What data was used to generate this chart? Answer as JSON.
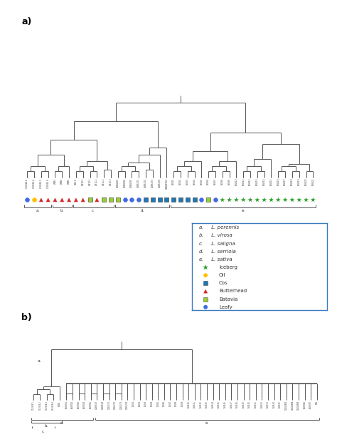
{
  "title_a": "a)",
  "title_b": "b)",
  "background_color": "#ffffff",
  "legend_entries": [
    {
      "label": "a. L. perennis",
      "color": "#000000",
      "marker": null,
      "italic": true
    },
    {
      "label": "b. L. virosa",
      "color": "#000000",
      "marker": null,
      "italic": true
    },
    {
      "label": "c. L. saligna",
      "color": "#000000",
      "marker": null,
      "italic": true
    },
    {
      "label": "d. L. serriola",
      "color": "#000000",
      "marker": null,
      "italic": true
    },
    {
      "label": "e. L. sativa",
      "color": "#000000",
      "marker": null,
      "italic": true
    },
    {
      "label": "Iceberg",
      "color": "#2ca02c",
      "marker": "*",
      "italic": false
    },
    {
      "label": "Oil",
      "color": "#ffbf00",
      "marker": "o",
      "italic": false
    },
    {
      "label": "Cos",
      "color": "#1f77b4",
      "marker": "s",
      "italic": false
    },
    {
      "label": "Butterhead",
      "color": "#d62728",
      "marker": "^",
      "italic": false
    },
    {
      "label": "Batavia",
      "color": "#9acd32",
      "marker": "s",
      "italic": false
    },
    {
      "label": "Leafy",
      "color": "#4169e1",
      "marker": "o",
      "italic": false
    }
  ],
  "marker_colors_a": [
    "#4169e1",
    "#ffbf00",
    "#d62728",
    "#d62728",
    "#d62728",
    "#d62728",
    "#d62728",
    "#d62728",
    "#d62728",
    "#9acd32",
    "#d62728",
    "#9acd32",
    "#9acd32",
    "#9acd32",
    "#4169e1",
    "#4169e1",
    "#4169e1",
    "#1f77b4",
    "#1f77b4",
    "#1f77b4",
    "#1f77b4",
    "#1f77b4",
    "#1f77b4",
    "#1f77b4",
    "#1f77b4",
    "#4169e1",
    "#9acd32",
    "#4169e1",
    "#2ca02c",
    "#2ca02c",
    "#2ca02c",
    "#2ca02c",
    "#2ca02c",
    "#2ca02c",
    "#2ca02c",
    "#2ca02c",
    "#2ca02c",
    "#2ca02c",
    "#2ca02c",
    "#2ca02c",
    "#2ca02c",
    "#2ca02c"
  ],
  "marker_shapes_a": [
    "o",
    "o",
    "^",
    "^",
    "^",
    "^",
    "^",
    "^",
    "^",
    "s",
    "^",
    "s",
    "s",
    "s",
    "o",
    "o",
    "o",
    "s",
    "s",
    "s",
    "s",
    "s",
    "s",
    "s",
    "s",
    "o",
    "s",
    "o",
    "*",
    "*",
    "*",
    "*",
    "*",
    "*",
    "*",
    "*",
    "*",
    "*",
    "*",
    "*",
    "*",
    "*"
  ],
  "line_color": "#555555",
  "line_width": 0.7
}
